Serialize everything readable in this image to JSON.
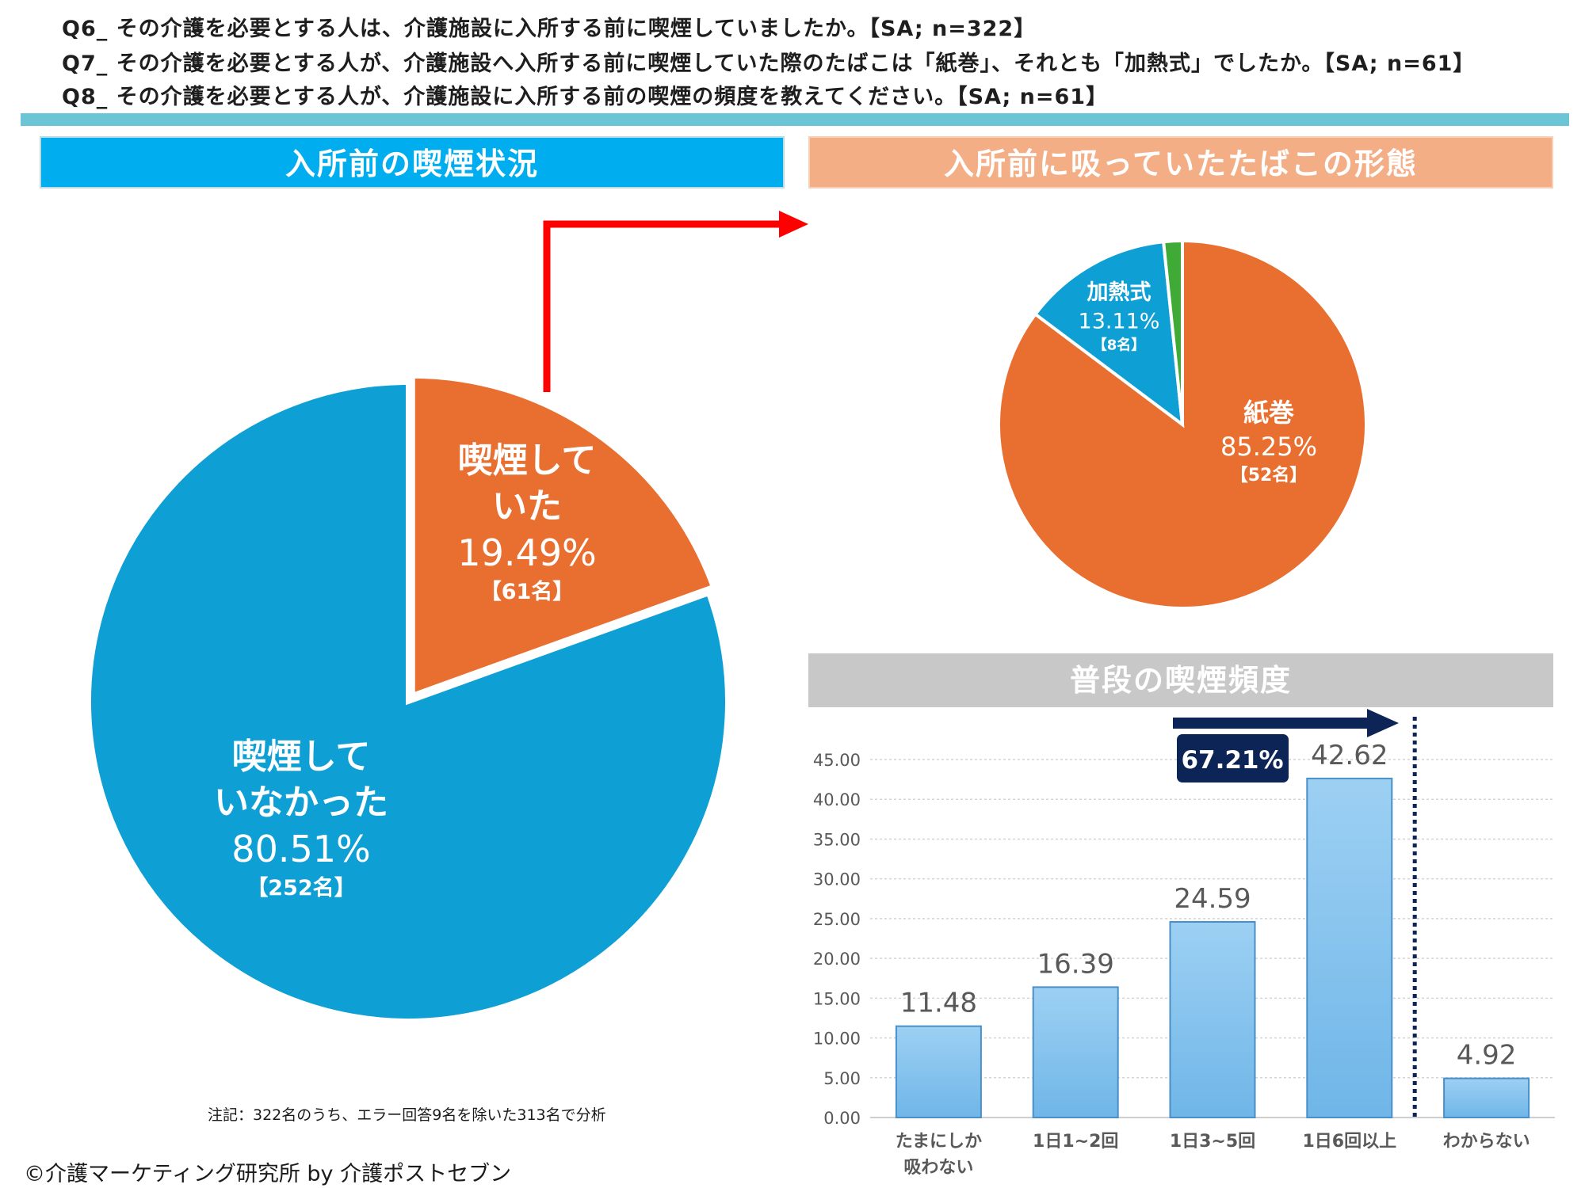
{
  "questions": {
    "q6": "Q6_ その介護を必要とする人は、介護施設に入所する前に喫煙していましたか。【SA; n=322】",
    "q7": "Q7_ その介護を必要とする人が、介護施設へ入所する前に喫煙していた際のたばこは「紙巻」、それとも「加熱式」でしたか。【SA; n=61】",
    "q8": "Q8_ その介護を必要とする人が、介護施設に入所する前の喫煙の頻度を教えてください。【SA; n=61】"
  },
  "headers": {
    "left": "入所前の喫煙状況",
    "right": "入所前に吸っていたたばこの形態",
    "bar": "普段の喫煙頻度"
  },
  "colors": {
    "blue": "#0e9fd4",
    "orange": "#e86f30",
    "green": "#3faa35",
    "bar": "#8ec8ef",
    "navy": "#0d2456",
    "arrow_red": "#ff0000"
  },
  "chart_data": [
    {
      "type": "pie",
      "title": "入所前の喫煙状況",
      "slices": [
        {
          "label_lines": [
            "喫煙して",
            "いた"
          ],
          "value": 19.49,
          "percent": "19.49%",
          "count": "【61名】"
        },
        {
          "label_lines": [
            "喫煙して",
            "いなかった"
          ],
          "value": 80.51,
          "percent": "80.51%",
          "count": "【252名】"
        }
      ]
    },
    {
      "type": "pie",
      "title": "入所前に吸っていたたばこの形態",
      "slices": [
        {
          "label_lines": [
            "紙巻"
          ],
          "value": 85.25,
          "percent": "85.25%",
          "count": "【52名】"
        },
        {
          "label_lines": [
            "加熱式"
          ],
          "value": 13.11,
          "percent": "13.11%",
          "count": "【8名】"
        },
        {
          "label_lines": [],
          "value": 1.64,
          "percent": "",
          "count": ""
        }
      ]
    },
    {
      "type": "bar",
      "title": "普段の喫煙頻度",
      "categories": [
        [
          "たまにしか",
          "吸わない"
        ],
        [
          "1日1~2回"
        ],
        [
          "1日3~5回"
        ],
        [
          "1日6回以上"
        ],
        [
          "わからない"
        ]
      ],
      "values": [
        11.48,
        16.39,
        24.59,
        42.62,
        4.92
      ],
      "value_labels": [
        "11.48",
        "16.39",
        "24.59",
        "42.62",
        "4.92"
      ],
      "ylim": [
        0,
        45
      ],
      "yticks": [
        "0.00",
        "5.00",
        "10.00",
        "15.00",
        "20.00",
        "25.00",
        "30.00",
        "35.00",
        "40.00",
        "45.00"
      ],
      "grid": true,
      "callout": "67.21%"
    }
  ],
  "note": "注記：322名のうち、エラー回答9名を除いた313名で分析",
  "copyright": "©介護マーケティング研究所 by 介護ポストセブン"
}
